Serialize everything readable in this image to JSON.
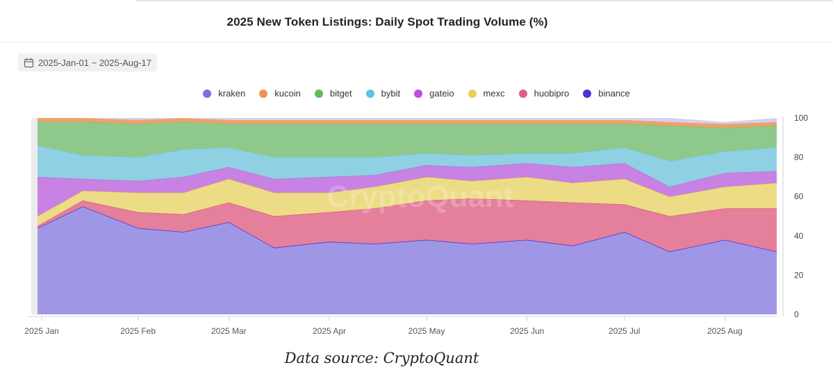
{
  "title": "2025 New Token Listings: Daily Spot Trading Volume (%)",
  "date_range": {
    "label": "2025-Jan-01 ~ 2025-Aug-17",
    "icon": "calendar-icon"
  },
  "footer": "Data source: CryptoQuant",
  "watermark": "CryptoQuant",
  "colors": {
    "kraken": "#9f97e6",
    "kucoin": "#eca26a",
    "bitget": "#8ec98b",
    "bybit": "#8fd0e3",
    "gateio": "#c782e3",
    "mexc": "#eddc86",
    "huobipro": "#e4809b",
    "binance_line": "#5a3fd6"
  },
  "chart_data": {
    "type": "area",
    "stacked": true,
    "title": "2025 New Token Listings: Daily Spot Trading Volume (%)",
    "xlabel": "",
    "ylabel": "",
    "ylim": [
      0,
      100
    ],
    "y_ticks": [
      0,
      20,
      40,
      60,
      80,
      100
    ],
    "y_axis_side": "right",
    "x_ticks": [
      "2025 Jan",
      "2025 Feb",
      "2025 Mar",
      "2025 Apr",
      "2025 May",
      "2025 Jun",
      "2025 Jul",
      "2025 Aug"
    ],
    "legend_position": "top-center",
    "legend": [
      {
        "name": "kraken",
        "color": "#7c6fe0"
      },
      {
        "name": "kucoin",
        "color": "#f0925a"
      },
      {
        "name": "bitget",
        "color": "#62b95e"
      },
      {
        "name": "bybit",
        "color": "#5dc3de"
      },
      {
        "name": "gateio",
        "color": "#b84fdf"
      },
      {
        "name": "mexc",
        "color": "#f0cc55"
      },
      {
        "name": "huobipro",
        "color": "#dd5f86"
      },
      {
        "name": "binance",
        "color": "#4a32d8"
      }
    ],
    "x": [
      "2025-01-01",
      "2025-01-15",
      "2025-02-01",
      "2025-02-15",
      "2025-03-01",
      "2025-03-15",
      "2025-04-01",
      "2025-04-15",
      "2025-05-01",
      "2025-05-15",
      "2025-06-01",
      "2025-06-15",
      "2025-07-01",
      "2025-07-15",
      "2025-08-01",
      "2025-08-17"
    ],
    "series": [
      {
        "name": "kraken",
        "values": [
          44,
          55,
          44,
          42,
          47,
          34,
          37,
          36,
          38,
          36,
          38,
          35,
          42,
          32,
          38,
          32
        ]
      },
      {
        "name": "huobipro",
        "values": [
          1,
          3,
          8,
          9,
          10,
          16,
          15,
          18,
          20,
          23,
          20,
          22,
          14,
          18,
          16,
          22
        ]
      },
      {
        "name": "mexc",
        "values": [
          5,
          5,
          10,
          11,
          12,
          12,
          10,
          11,
          12,
          9,
          12,
          10,
          13,
          10,
          11,
          13
        ]
      },
      {
        "name": "gateio",
        "values": [
          20,
          6,
          6,
          8,
          6,
          7,
          8,
          6,
          6,
          7,
          7,
          8,
          8,
          5,
          7,
          6
        ]
      },
      {
        "name": "bybit",
        "values": [
          16,
          12,
          12,
          14,
          10,
          11,
          10,
          9,
          6,
          6,
          5,
          7,
          8,
          13,
          11,
          12
        ]
      },
      {
        "name": "bitget",
        "values": [
          12,
          17,
          17,
          14,
          12,
          17,
          17,
          17,
          15,
          16,
          15,
          15,
          12,
          18,
          12,
          11
        ]
      },
      {
        "name": "kucoin",
        "values": [
          2,
          2,
          2,
          2,
          2,
          2,
          2,
          2,
          2,
          2,
          2,
          2,
          2,
          2,
          2,
          2
        ]
      },
      {
        "name": "binance",
        "values": [
          0,
          0,
          1,
          0,
          1,
          1,
          1,
          1,
          1,
          1,
          1,
          1,
          1,
          2,
          1,
          2
        ]
      }
    ]
  }
}
